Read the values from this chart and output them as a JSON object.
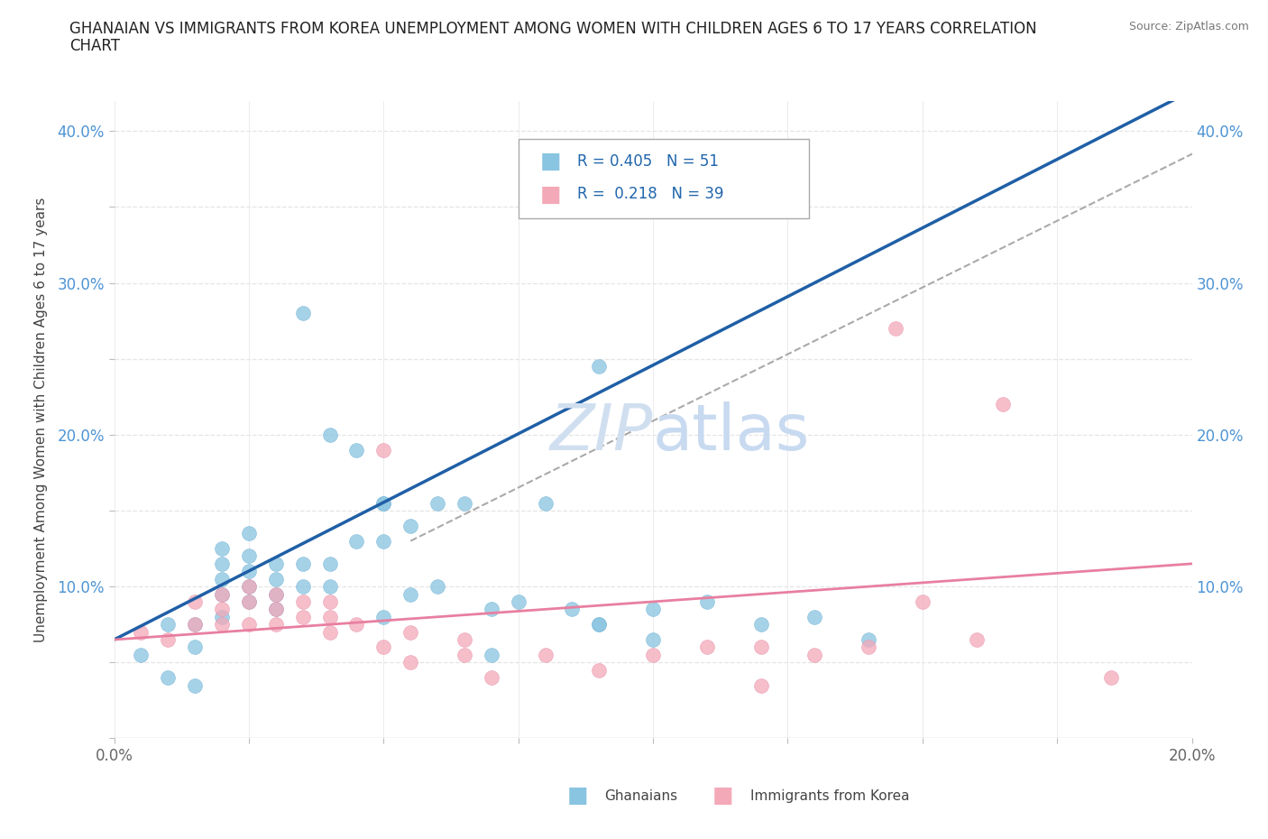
{
  "title": "GHANAIAN VS IMMIGRANTS FROM KOREA UNEMPLOYMENT AMONG WOMEN WITH CHILDREN AGES 6 TO 17 YEARS CORRELATION\nCHART",
  "source_text": "Source: ZipAtlas.com",
  "ylabel": "Unemployment Among Women with Children Ages 6 to 17 years",
  "xlim": [
    0.0,
    0.2
  ],
  "ylim": [
    0.0,
    0.42
  ],
  "x_ticks": [
    0.0,
    0.025,
    0.05,
    0.075,
    0.1,
    0.125,
    0.15,
    0.175,
    0.2
  ],
  "y_ticks": [
    0.0,
    0.05,
    0.1,
    0.15,
    0.2,
    0.25,
    0.3,
    0.35,
    0.4
  ],
  "ghanaian_color": "#89c4e1",
  "korean_color": "#f4a9b8",
  "line_blue": "#1f5fa6",
  "line_pink": "#e87fa0",
  "line_dashed_color": "#aaaaaa",
  "R_ghana": 0.405,
  "N_ghana": 51,
  "R_korea": 0.218,
  "N_korea": 39,
  "ghana_x": [
    0.005,
    0.01,
    0.01,
    0.015,
    0.015,
    0.015,
    0.02,
    0.02,
    0.02,
    0.02,
    0.02,
    0.025,
    0.025,
    0.025,
    0.025,
    0.025,
    0.03,
    0.03,
    0.03,
    0.03,
    0.035,
    0.035,
    0.035,
    0.04,
    0.04,
    0.04,
    0.045,
    0.045,
    0.05,
    0.05,
    0.05,
    0.055,
    0.055,
    0.06,
    0.06,
    0.065,
    0.07,
    0.07,
    0.075,
    0.08,
    0.085,
    0.09,
    0.09,
    0.1,
    0.1,
    0.11,
    0.12,
    0.13,
    0.14,
    0.09,
    0.05
  ],
  "ghana_y": [
    0.055,
    0.075,
    0.04,
    0.06,
    0.035,
    0.075,
    0.08,
    0.095,
    0.105,
    0.115,
    0.125,
    0.09,
    0.1,
    0.11,
    0.12,
    0.135,
    0.085,
    0.095,
    0.105,
    0.115,
    0.1,
    0.115,
    0.28,
    0.1,
    0.115,
    0.2,
    0.13,
    0.19,
    0.08,
    0.13,
    0.155,
    0.095,
    0.14,
    0.1,
    0.155,
    0.155,
    0.085,
    0.055,
    0.09,
    0.155,
    0.085,
    0.075,
    0.245,
    0.085,
    0.065,
    0.09,
    0.075,
    0.08,
    0.065,
    0.075,
    0.155
  ],
  "korea_x": [
    0.005,
    0.01,
    0.015,
    0.015,
    0.02,
    0.02,
    0.02,
    0.025,
    0.025,
    0.025,
    0.03,
    0.03,
    0.03,
    0.035,
    0.035,
    0.04,
    0.04,
    0.04,
    0.045,
    0.05,
    0.05,
    0.055,
    0.055,
    0.065,
    0.065,
    0.07,
    0.08,
    0.09,
    0.1,
    0.11,
    0.12,
    0.12,
    0.13,
    0.14,
    0.145,
    0.15,
    0.16,
    0.165,
    0.185
  ],
  "korea_y": [
    0.07,
    0.065,
    0.075,
    0.09,
    0.075,
    0.085,
    0.095,
    0.075,
    0.09,
    0.1,
    0.075,
    0.085,
    0.095,
    0.08,
    0.09,
    0.07,
    0.08,
    0.09,
    0.075,
    0.06,
    0.19,
    0.05,
    0.07,
    0.055,
    0.065,
    0.04,
    0.055,
    0.045,
    0.055,
    0.06,
    0.06,
    0.035,
    0.055,
    0.06,
    0.27,
    0.09,
    0.065,
    0.22,
    0.04
  ],
  "background_color": "#ffffff",
  "grid_color": "#e5e5e5",
  "grid_style_h": "--",
  "watermark_text": "ZIPatlas",
  "watermark_color": "#d0dff0",
  "watermark_fontsize": 52,
  "legend_text_color": "#2166ac",
  "tick_color_y": "#4d94d5",
  "tick_color_x": "#666666"
}
